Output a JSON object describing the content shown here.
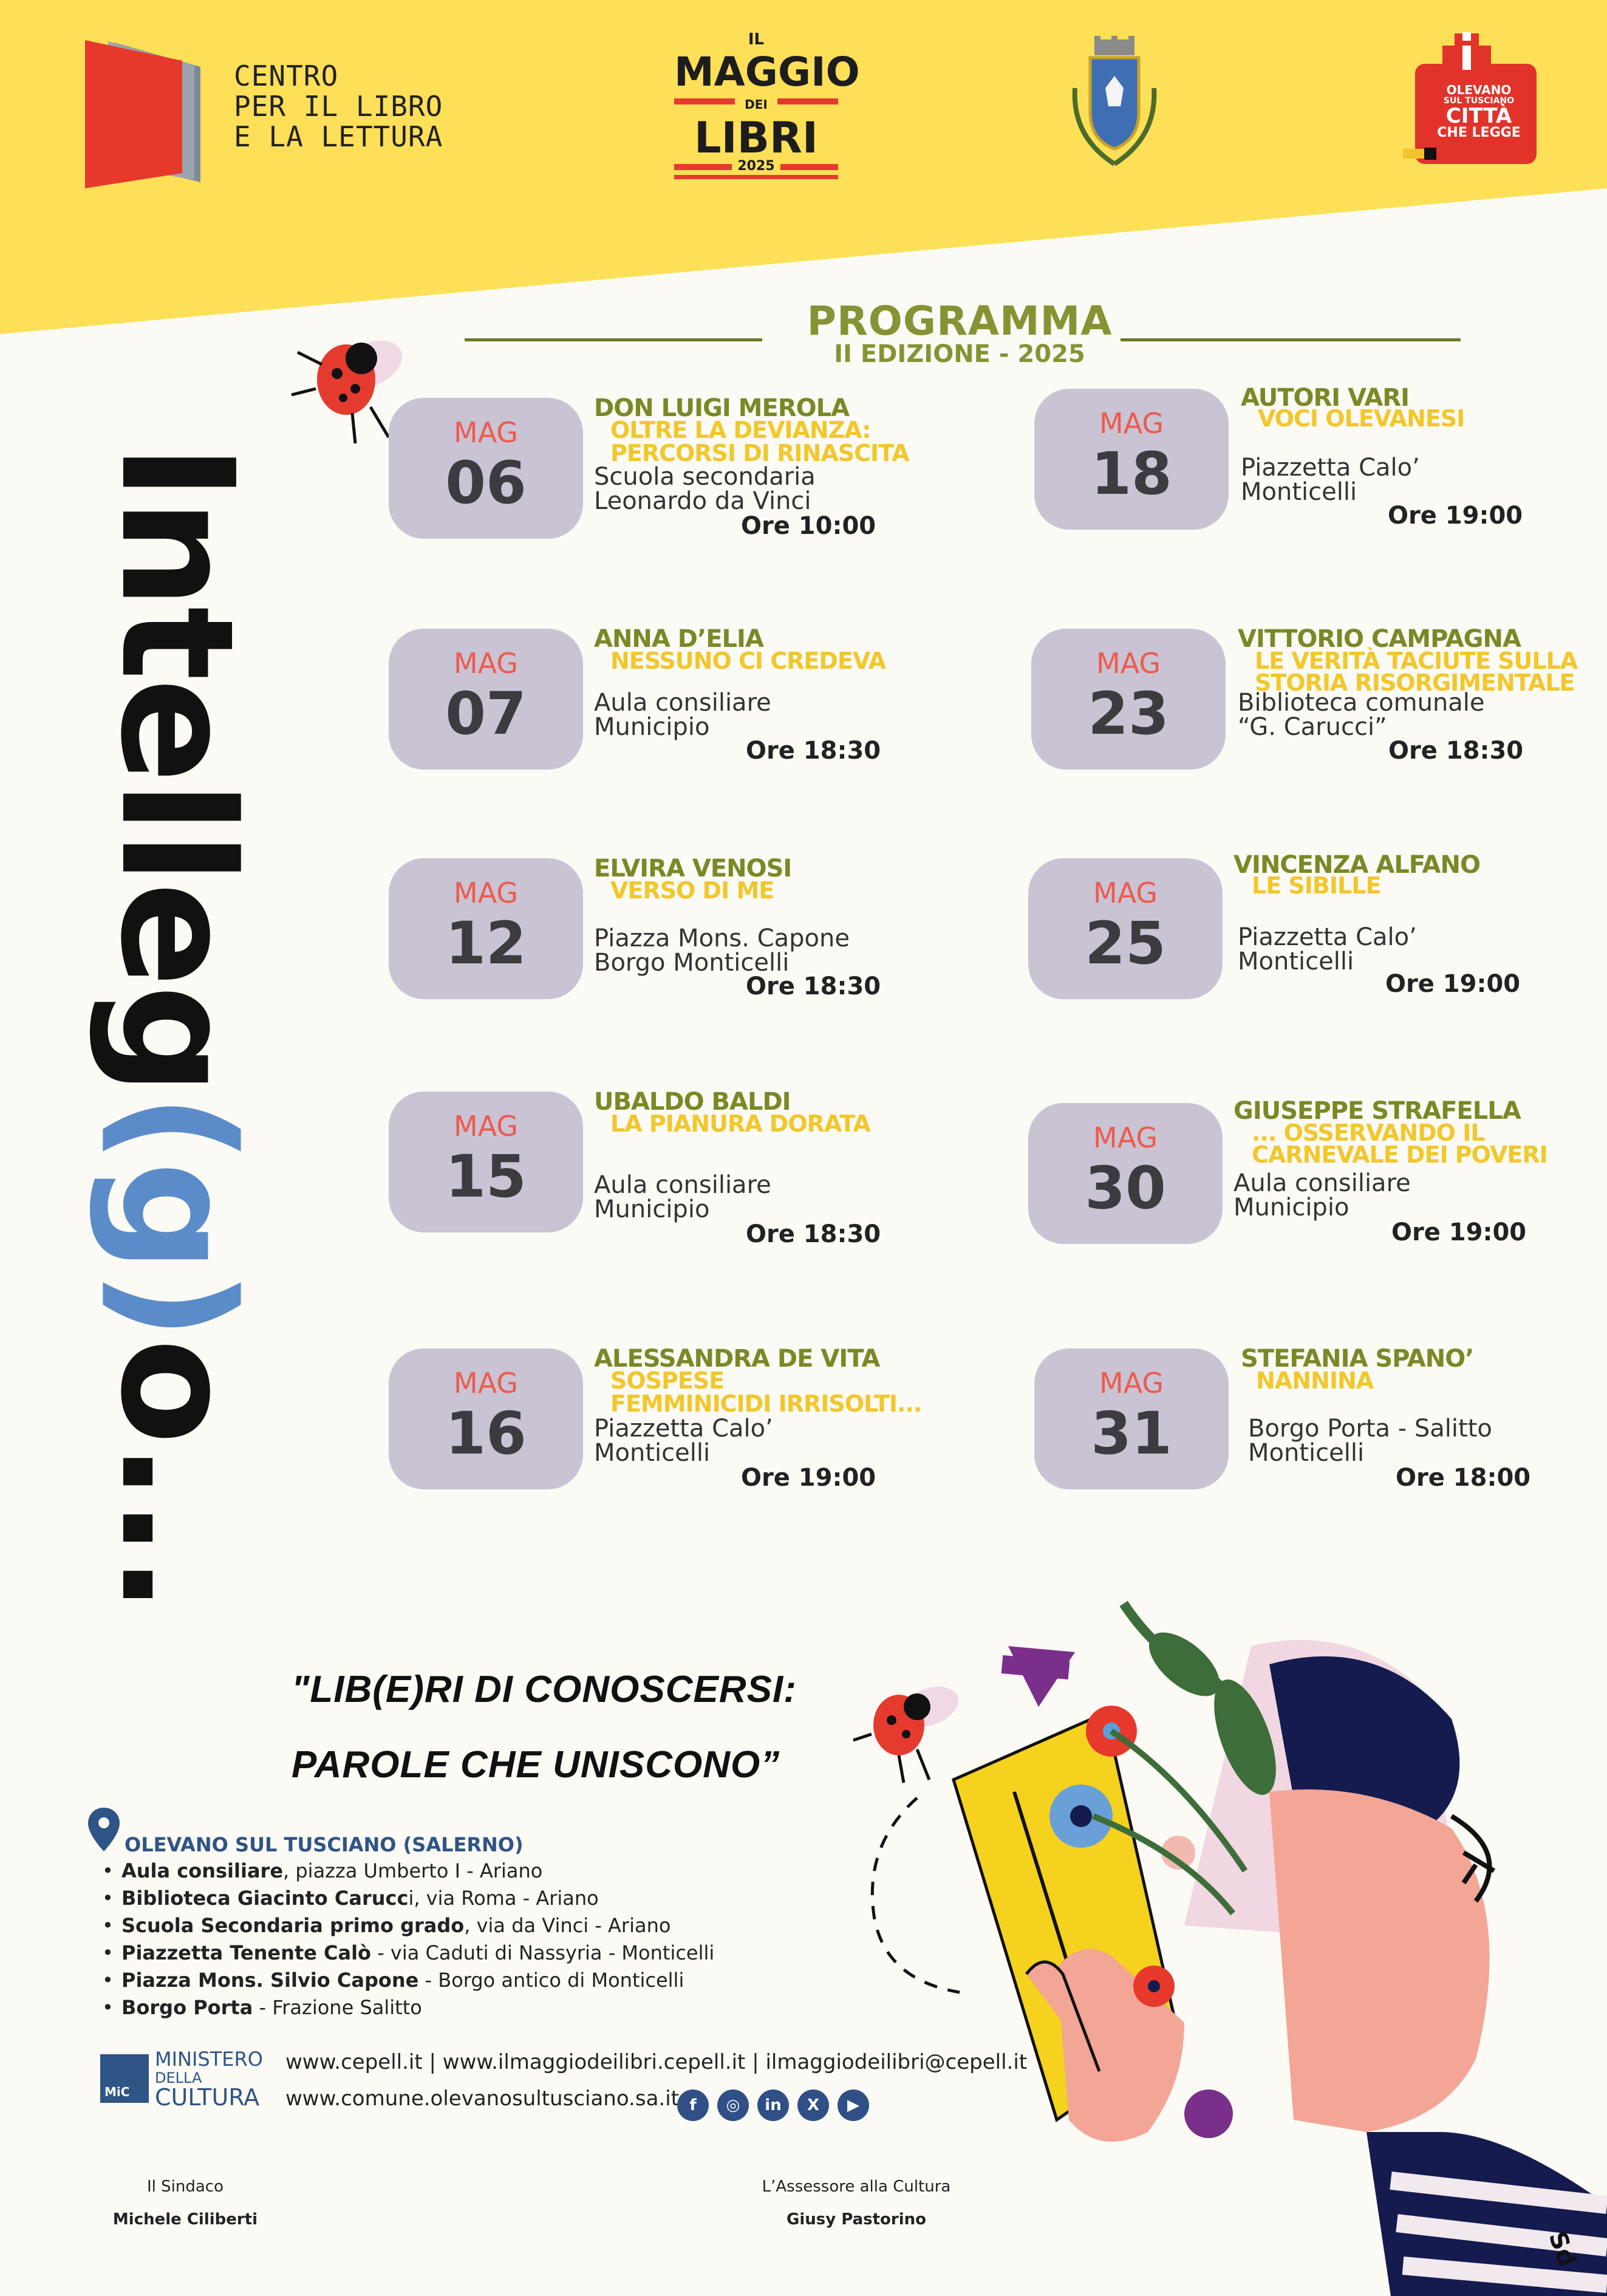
{
  "header": {
    "cepell": {
      "line1": "CENTRO",
      "line2": "PER IL LIBRO",
      "line3": "E LA LETTURA"
    },
    "maggio": {
      "il": "IL",
      "maggio": "MAGGIO",
      "dei": "DEI",
      "libri": "LIBRI",
      "year": "2025"
    },
    "citta": {
      "line1": "OLEVANO",
      "line2": "SUL TUSCIANO",
      "line3": "CITTÀ",
      "line4": "CHE LEGGE"
    }
  },
  "program": {
    "title": "PROGRAMMA",
    "subtitle": "II EDIZIONE - 2025"
  },
  "vertical_title": {
    "part1": "Intelleg",
    "part2": "(g)",
    "part3": "o..."
  },
  "events": [
    {
      "month": "MAG",
      "day": "06",
      "author": "DON LUIGI MEROLA",
      "title": [
        "OLTRE LA DEVIANZA:",
        "PERCORSI DI RINASCITA"
      ],
      "place": "Scuola secondaria\nLeonardo da Vinci",
      "time": "Ore 10:00"
    },
    {
      "month": "MAG",
      "day": "18",
      "author": "AUTORI VARI",
      "title": [
        "VOCI OLEVANESI"
      ],
      "place": "Piazzetta Calo’\nMonticelli",
      "time": "Ore 19:00"
    },
    {
      "month": "MAG",
      "day": "07",
      "author": "ANNA D’ELIA",
      "title": [
        "NESSUNO CI CREDEVA"
      ],
      "place": "Aula consiliare\nMunicipio",
      "time": "Ore 18:30"
    },
    {
      "month": "MAG",
      "day": "23",
      "author": "VITTORIO CAMPAGNA",
      "title": [
        "LE VERITÀ TACIUTE SULLA",
        "STORIA RISORGIMENTALE"
      ],
      "place": "Biblioteca comunale\n“G. Carucci”",
      "time": "Ore 18:30"
    },
    {
      "month": "MAG",
      "day": "12",
      "author": "ELVIRA VENOSI",
      "title": [
        "VERSO DI ME"
      ],
      "place": "Piazza Mons. Capone\nBorgo Monticelli",
      "time": "Ore 18:30"
    },
    {
      "month": "MAG",
      "day": "25",
      "author": "VINCENZA ALFANO",
      "title": [
        "LE SIBILLE"
      ],
      "place": "Piazzetta Calo’\nMonticelli",
      "time": "Ore 19:00"
    },
    {
      "month": "MAG",
      "day": "15",
      "author": "UBALDO BALDI",
      "title": [
        "LA PIANURA DORATA"
      ],
      "place": "Aula consiliare\nMunicipio",
      "time": "Ore 18:30"
    },
    {
      "month": "MAG",
      "day": "30",
      "author": "GIUSEPPE STRAFELLA",
      "title": [
        "... OSSERVANDO IL",
        "CARNEVALE DEI POVERI"
      ],
      "place": "Aula consiliare\nMunicipio",
      "time": "Ore 19:00"
    },
    {
      "month": "MAG",
      "day": "16",
      "author": "ALESSANDRA DE VITA",
      "title": [
        "SOSPESE",
        "FEMMINICIDI IRRISOLTI..."
      ],
      "place": "Piazzetta Calo’\nMonticelli",
      "time": "Ore 19:00"
    },
    {
      "month": "MAG",
      "day": "31",
      "author": "STEFANIA SPANO’",
      "title": [
        "NANNINA"
      ],
      "place": "Borgo Porta - Salitto\nMonticelli",
      "time": "Ore 18:00"
    }
  ],
  "quote": {
    "line1": "\"LIB(E)RI DI CONOSCERSI:",
    "line2": "PAROLE CHE UNISCONO”"
  },
  "location": {
    "heading": "OLEVANO SUL TUSCIANO (SALERNO)",
    "venues": [
      {
        "name": "Aula consiliare",
        "detail": ", piazza Umberto I - Ariano"
      },
      {
        "name": "Biblioteca Giacinto Carucc",
        "detail": "i, via Roma - Ariano"
      },
      {
        "name": "Scuola Secondaria primo grado",
        "detail": ", via da Vinci - Ariano"
      },
      {
        "name": "Piazzetta Tenente Calò",
        "detail": " -  via  Caduti di Nassyria - Monticelli"
      },
      {
        "name": "Piazza Mons. Silvio Capone",
        "detail": " - Borgo antico di Monticelli"
      },
      {
        "name": "Borgo Porta",
        "detail": " - Frazione Salitto"
      }
    ]
  },
  "footer": {
    "ministero": {
      "line1": "MINISTERO",
      "line2": "DELLA",
      "line3": "CULTURA",
      "mic": "MiC"
    },
    "links_line1": "www.cepell.it | www.ilmaggiodeilibri.cepell.it | ilmaggiodeilibri@cepell.it",
    "links_line2": "www.comune.olevanosultusciano.sa.it",
    "social": [
      "f",
      "◎",
      "in",
      "X",
      "▶"
    ],
    "sindaco_role": "Il Sindaco",
    "sindaco_name": "Michele Ciliberti",
    "assessore_role": "L’Assessore alla Cultura",
    "assessore_name": "Giusy Pastorino",
    "artist_signature": "Sd"
  },
  "colors": {
    "yellow": "#fddf58",
    "olive": "#879234",
    "gold": "#f2c72c",
    "datebox": "#c9c3d3",
    "red": "#ee5a4d",
    "blue": "#5b8cc9",
    "navy": "#2f5486"
  }
}
